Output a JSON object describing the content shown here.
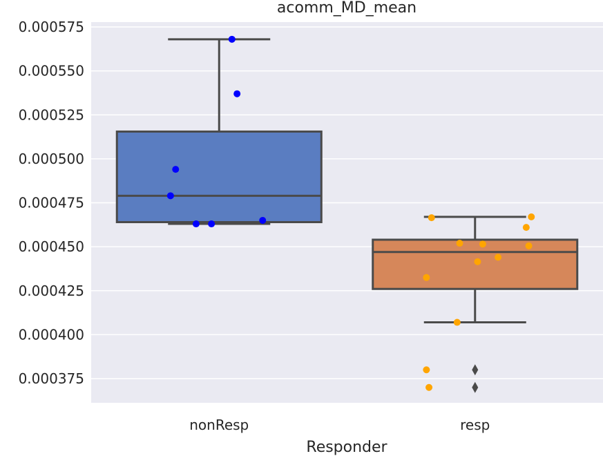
{
  "chart_data": {
    "type": "box",
    "title": "acomm_MD_mean",
    "xlabel": "Responder",
    "ylabel": "",
    "ylim": [
      0.00036,
      0.000578
    ],
    "grid": true,
    "y_ticks": [
      0.000375,
      0.0004,
      0.000425,
      0.00045,
      0.000475,
      0.0005,
      0.000525,
      0.00055,
      0.000575
    ],
    "y_tick_labels": [
      "0.000375",
      "0.000400",
      "0.000425",
      "0.000450",
      "0.000475",
      "0.000500",
      "0.000525",
      "0.000550",
      "0.000575"
    ],
    "categories": [
      "nonResp",
      "resp"
    ],
    "boxes": [
      {
        "category": "nonResp",
        "q1": 0.000464,
        "median": 0.000479,
        "q3": 0.0005155,
        "whisker_low": 0.000463,
        "whisker_high": 0.000568,
        "outliers": [],
        "fill": "#5a7dc1",
        "point_color": "#0000ff",
        "points": [
          {
            "y": 0.000568,
            "jitter": 0.05
          },
          {
            "y": 0.000537,
            "jitter": 0.07
          },
          {
            "y": 0.000494,
            "jitter": -0.17
          },
          {
            "y": 0.000479,
            "jitter": -0.19
          },
          {
            "y": 0.000463,
            "jitter": -0.09
          },
          {
            "y": 0.000463,
            "jitter": -0.03
          },
          {
            "y": 0.000465,
            "jitter": 0.17
          }
        ]
      },
      {
        "category": "resp",
        "q1": 0.000426,
        "median": 0.000447,
        "q3": 0.000454,
        "whisker_low": 0.000407,
        "whisker_high": 0.000467,
        "outliers": [
          0.00038,
          0.00037
        ],
        "fill": "#d6875a",
        "point_color": "#ffa500",
        "points": [
          {
            "y": 0.0004665,
            "jitter": -0.17
          },
          {
            "y": 0.000467,
            "jitter": 0.22
          },
          {
            "y": 0.000461,
            "jitter": 0.2
          },
          {
            "y": 0.000452,
            "jitter": -0.06
          },
          {
            "y": 0.0004515,
            "jitter": 0.03
          },
          {
            "y": 0.0004505,
            "jitter": 0.21
          },
          {
            "y": 0.000444,
            "jitter": 0.09
          },
          {
            "y": 0.0004415,
            "jitter": 0.01
          },
          {
            "y": 0.0004325,
            "jitter": -0.19
          },
          {
            "y": 0.000407,
            "jitter": -0.07
          },
          {
            "y": 0.00038,
            "jitter": -0.19
          },
          {
            "y": 0.00037,
            "jitter": -0.18
          }
        ]
      }
    ]
  },
  "colors": {
    "plot_background": "#eaeaf2",
    "grid": "#ffffff",
    "box_edge": "#4a4a4a",
    "outlier_marker": "#4a4a4a"
  }
}
